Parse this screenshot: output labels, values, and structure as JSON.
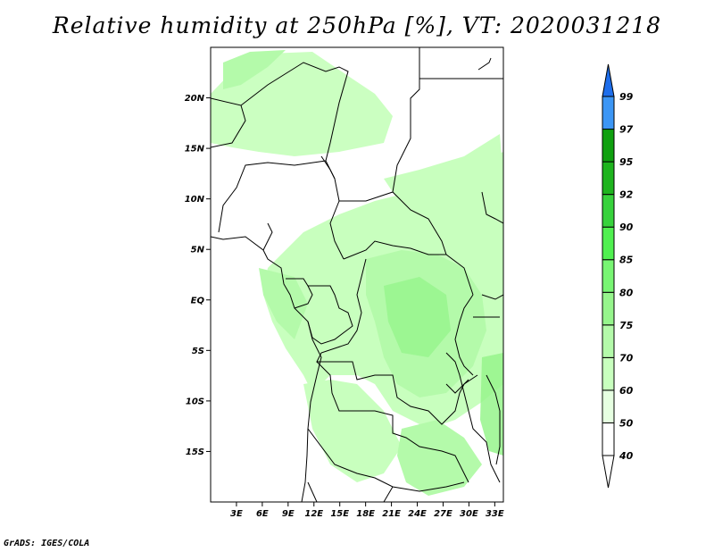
{
  "title": "Relative humidity at 250hPa [%], VT: 2020031218",
  "credit": "GrADS: IGES/COLA",
  "map": {
    "lon_range": [
      0,
      34
    ],
    "lat_range": [
      -20,
      25
    ],
    "lat_ticks": [
      {
        "value": 20,
        "label": "20N"
      },
      {
        "value": 15,
        "label": "15N"
      },
      {
        "value": 10,
        "label": "10N"
      },
      {
        "value": 5,
        "label": "5N"
      },
      {
        "value": 0,
        "label": "EQ"
      },
      {
        "value": -5,
        "label": "5S"
      },
      {
        "value": -10,
        "label": "10S"
      },
      {
        "value": -15,
        "label": "15S"
      }
    ],
    "lon_ticks": [
      {
        "value": 3,
        "label": "3E"
      },
      {
        "value": 6,
        "label": "6E"
      },
      {
        "value": 9,
        "label": "9E"
      },
      {
        "value": 12,
        "label": "12E"
      },
      {
        "value": 15,
        "label": "15E"
      },
      {
        "value": 18,
        "label": "18E"
      },
      {
        "value": 21,
        "label": "21E"
      },
      {
        "value": 24,
        "label": "24E"
      },
      {
        "value": 27,
        "label": "27E"
      },
      {
        "value": 30,
        "label": "30E"
      },
      {
        "value": 33,
        "label": "33E"
      }
    ]
  },
  "colorbar": {
    "levels": [
      {
        "label": "40",
        "color": "#ffffff"
      },
      {
        "label": "50",
        "color": "#e6ffe1"
      },
      {
        "label": "60",
        "color": "#c8ffbe"
      },
      {
        "label": "70",
        "color": "#b4faaa"
      },
      {
        "label": "75",
        "color": "#96f58c"
      },
      {
        "label": "80",
        "color": "#78f573"
      },
      {
        "label": "85",
        "color": "#50f050"
      },
      {
        "label": "90",
        "color": "#37d23c"
      },
      {
        "label": "92",
        "color": "#1eb41e"
      },
      {
        "label": "95",
        "color": "#0fa00f"
      },
      {
        "label": "97",
        "color": "#3c96f5"
      },
      {
        "label": "99",
        "color": "#1e6eeb"
      }
    ],
    "top_color": "#1e6eeb",
    "bottom_color": "#ffffff"
  }
}
